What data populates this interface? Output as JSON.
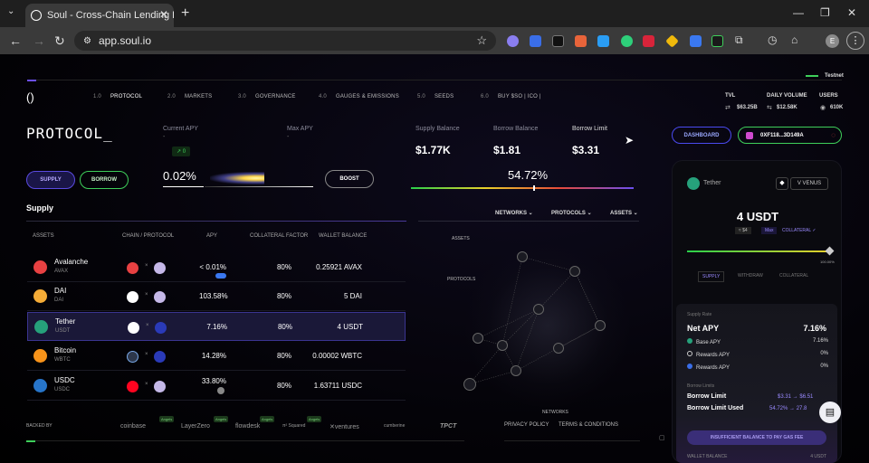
{
  "browser": {
    "tab_title": "Soul - Cross-Chain Lending Pro",
    "url": "app.soul.io",
    "profile_initial": "E"
  },
  "header": {
    "testnet_label": "Testnet",
    "logo": "()",
    "nav": [
      {
        "num": "1.0",
        "label": "PROTOCOL"
      },
      {
        "num": "2.0",
        "label": "MARKETS"
      },
      {
        "num": "3.0",
        "label": "GOVERNANCE"
      },
      {
        "num": "4.0",
        "label": "GAUGES & EMISSIONS"
      },
      {
        "num": "5.0",
        "label": "SEEDS"
      },
      {
        "num": "6.0",
        "label": "BUY $SO | ICO |"
      }
    ],
    "stats": {
      "tvl_label": "TVL",
      "tvl_value": "$63.25B",
      "daily_volume_label": "DAILY VOLUME",
      "daily_volume_value": "$12.58K",
      "users_label": "USERS",
      "users_value": "610K"
    }
  },
  "protocol": {
    "title": "PROTOCOL_",
    "current_apy_label": "Current APY",
    "current_apy_sub": "-",
    "current_apy_badge": "↗ 0",
    "max_apy_label": "Max APY",
    "max_apy_sub": "-",
    "apy_value": "0.02%",
    "boost_label": "BOOST",
    "supply_balance_label": "Supply Balance",
    "supply_balance_value": "$1.77K",
    "borrow_balance_label": "Borrow Balance",
    "borrow_balance_value": "$1.81",
    "borrow_limit_label": "Borrow Limit",
    "borrow_limit_value": "$3.31",
    "borrow_limit_pct": "54.72%",
    "borrow_limit_fraction": 0.5472,
    "supply_btn": "SUPPLY",
    "borrow_btn": "BORROW"
  },
  "supply_table": {
    "title": "Supply",
    "headers": [
      "ASSETS",
      "CHAIN / PROTOCOL",
      "APY",
      "COLLATERAL FACTOR",
      "WALLET BALANCE"
    ],
    "rows": [
      {
        "name": "Avalanche",
        "symbol": "AVAX",
        "apy": "< 0.01%",
        "cf": "80%",
        "balance": "0.25921 AVAX",
        "color": "#e84142"
      },
      {
        "name": "DAI",
        "symbol": "DAI",
        "apy": "103.58%",
        "cf": "80%",
        "balance": "5 DAI",
        "color": "#f5ac37"
      },
      {
        "name": "Tether",
        "symbol": "USDT",
        "apy": "7.16%",
        "cf": "80%",
        "balance": "4 USDT",
        "color": "#26a17b"
      },
      {
        "name": "Bitcoin",
        "symbol": "WBTC",
        "apy": "14.28%",
        "cf": "80%",
        "balance": "0.00002 WBTC",
        "color": "#f7931a"
      },
      {
        "name": "USDC",
        "symbol": "USDC",
        "apy": "33.80%",
        "cf": "80%",
        "balance": "1.63711 USDC",
        "color": "#2775ca"
      }
    ]
  },
  "graph": {
    "filters": [
      "NETWORKS",
      "PROTOCOLS",
      "ASSETS"
    ],
    "labels": {
      "assets": "ASSETS",
      "protocols": "PROTOCOLS",
      "networks": "NETWORKS"
    }
  },
  "footer": {
    "backed_by": "BACKED BY",
    "partners": [
      "coinbase",
      "LayerZero",
      "flowdesk",
      "π² Squared",
      "ventures",
      "cumberine",
      "TPCT"
    ],
    "angels_tag": "Angels",
    "links": [
      "PRIVACY POLICY",
      "TERMS & CONDITIONS"
    ]
  },
  "right_panel": {
    "dashboard_btn": "DASHBOARD",
    "wallet_address": "0XF118...3D149A",
    "asset_name": "Tether",
    "venus_label": "VENUS",
    "amount": "4 USDT",
    "usd_value": "≈ $4",
    "max_label": "Max",
    "collateral_label": "COLLATERAL ✓",
    "slider_pct_label": "100.00%",
    "tabs": [
      "SUPPLY",
      "WITHDRAW",
      "COLLATERAL"
    ],
    "supply_rate_label": "Supply Rate",
    "net_apy_label": "Net APY",
    "net_apy_value": "7.16%",
    "base_apy_label": "Base APY",
    "base_apy_value": "7.16%",
    "rewards_apy_1_label": "Rewards APY",
    "rewards_apy_1_value": "0%",
    "rewards_apy_2_label": "Rewards APY",
    "rewards_apy_2_value": "0%",
    "borrow_limits_label": "Borrow Limits",
    "borrow_limit_label": "Borrow Limit",
    "borrow_limit_from": "$3.31",
    "borrow_limit_to": "$6.51",
    "borrow_limit_used_label": "Borrow Limit Used",
    "borrow_limit_used_from": "54.72%",
    "borrow_limit_used_to": "27.8",
    "warning_btn": "INSUFFICIENT BALANCE TO PAY GAS FEE",
    "wallet_balance_label": "WALLET BALANCE",
    "wallet_balance_value": "4 USDT"
  },
  "colors": {
    "accent": "#6b4ff0",
    "green": "#3ecf5a",
    "panel": "#0d0d14"
  }
}
